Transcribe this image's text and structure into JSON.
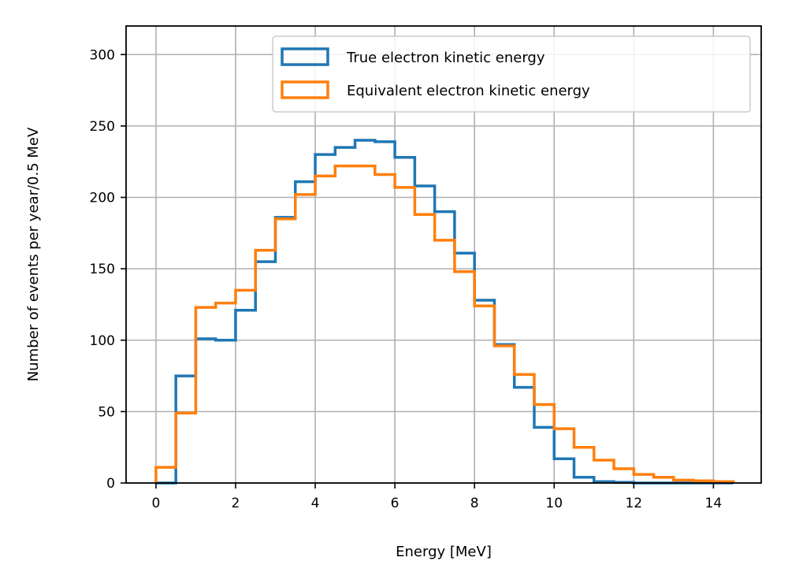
{
  "chart_data": {
    "type": "histogram",
    "title": "",
    "xlabel": "Energy [MeV]",
    "ylabel": "Number of events per year/0.5 MeV",
    "xlim": [
      -0.75,
      15.2
    ],
    "ylim": [
      0,
      320
    ],
    "xticks": [
      0,
      2,
      4,
      6,
      8,
      10,
      12,
      14
    ],
    "yticks": [
      0,
      50,
      100,
      150,
      200,
      250,
      300
    ],
    "grid": true,
    "legend_position": "upper-right",
    "bin_edges": [
      0,
      0.5,
      1,
      1.5,
      2,
      2.5,
      3,
      3.5,
      4,
      4.5,
      5,
      5.5,
      6,
      6.5,
      7,
      7.5,
      8,
      8.5,
      9,
      9.5,
      10,
      10.5,
      11,
      11.5,
      12,
      12.5,
      13,
      13.5,
      14,
      14.5
    ],
    "series": [
      {
        "name": "True electron kinetic energy",
        "color": "#1f77b4",
        "values": [
          0,
          75,
          101,
          100,
          121,
          155,
          186,
          211,
          230,
          235,
          240,
          239,
          228,
          208,
          190,
          161,
          128,
          97,
          67,
          39,
          17,
          4,
          1,
          0.5,
          0,
          0,
          0,
          0,
          0
        ]
      },
      {
        "name": "Equivalent electron kinetic energy",
        "color": "#ff7f0e",
        "values": [
          11,
          49,
          123,
          126,
          135,
          163,
          185,
          202,
          215,
          222,
          222,
          216,
          207,
          188,
          170,
          148,
          124,
          96,
          76,
          55,
          38,
          25,
          16,
          10,
          6,
          4,
          2,
          1.5,
          1
        ]
      }
    ]
  }
}
